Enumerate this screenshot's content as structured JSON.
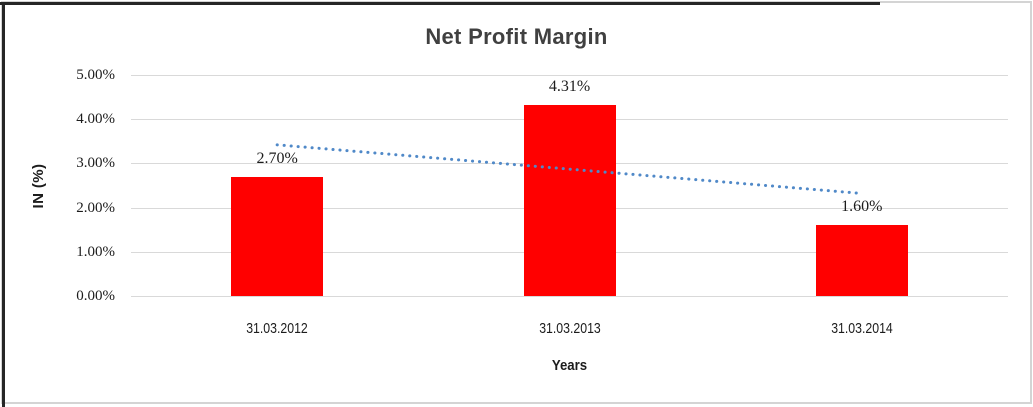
{
  "chart_data": {
    "type": "bar",
    "title": "Net Profit Margin",
    "xlabel": "Years",
    "ylabel": "IN (%)",
    "categories": [
      "31.03.2012",
      "31.03.2013",
      "31.03.2014"
    ],
    "values": [
      2.7,
      4.31,
      1.6
    ],
    "value_labels": [
      "2.70%",
      "4.31%",
      "1.60%"
    ],
    "ylim": [
      0,
      5
    ],
    "ytick_labels": [
      "0.00%",
      "1.00%",
      "2.00%",
      "3.00%",
      "4.00%",
      "5.00%"
    ],
    "grid": true,
    "legend_position": "none",
    "bar_color": "#FF0000",
    "gridline_color": "#D9D9D9",
    "title_color": "#404040",
    "axis_text_color": "#1c1c1c",
    "trendline": {
      "type": "linear",
      "style": "dotted",
      "color": "#5089C8"
    }
  }
}
